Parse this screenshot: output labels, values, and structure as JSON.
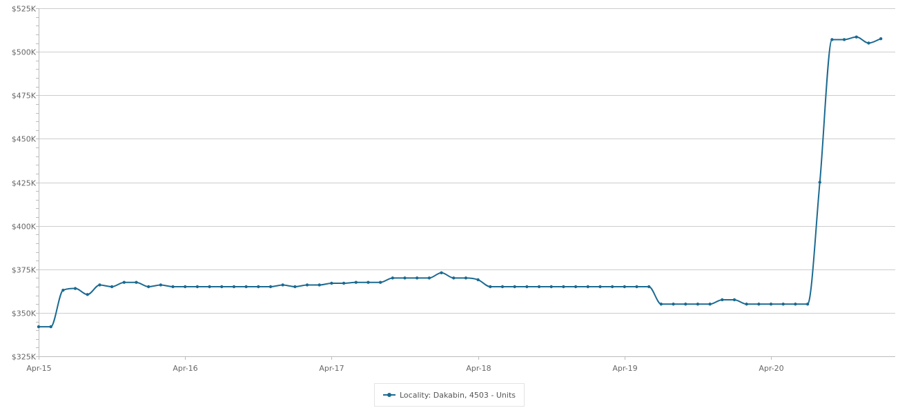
{
  "chart_data": {
    "type": "line",
    "title": "",
    "xlabel": "",
    "ylabel": "",
    "ylim": [
      325000,
      525000
    ],
    "xlim": [
      "2015-04",
      "2020-10"
    ],
    "grid": true,
    "legend_position": "bottom-center",
    "line_color": "#1b6a91",
    "y_ticks": [
      {
        "value": 325000,
        "label": "$325K"
      },
      {
        "value": 350000,
        "label": "$350K"
      },
      {
        "value": 375000,
        "label": "$375K"
      },
      {
        "value": 400000,
        "label": "$400K"
      },
      {
        "value": 425000,
        "label": "$425K"
      },
      {
        "value": 450000,
        "label": "$450K"
      },
      {
        "value": 475000,
        "label": "$475K"
      },
      {
        "value": 500000,
        "label": "$500K"
      },
      {
        "value": 525000,
        "label": "$525K"
      }
    ],
    "x_ticks": [
      {
        "value": "2015-04",
        "label": "Apr-15"
      },
      {
        "value": "2016-04",
        "label": "Apr-16"
      },
      {
        "value": "2017-04",
        "label": "Apr-17"
      },
      {
        "value": "2018-04",
        "label": "Apr-18"
      },
      {
        "value": "2019-04",
        "label": "Apr-19"
      },
      {
        "value": "2020-04",
        "label": "Apr-20"
      }
    ],
    "series": [
      {
        "name": "Locality: Dakabin, 4503 - Units",
        "points": [
          [
            "2015-04",
            342000
          ],
          [
            "2015-05",
            342000
          ],
          [
            "2015-06",
            363000
          ],
          [
            "2015-07",
            364000
          ],
          [
            "2015-08",
            360500
          ],
          [
            "2015-09",
            366000
          ],
          [
            "2015-10",
            365000
          ],
          [
            "2015-11",
            367500
          ],
          [
            "2015-12",
            367500
          ],
          [
            "2016-01",
            365000
          ],
          [
            "2016-02",
            366000
          ],
          [
            "2016-03",
            365000
          ],
          [
            "2016-04",
            365000
          ],
          [
            "2016-05",
            365000
          ],
          [
            "2016-06",
            365000
          ],
          [
            "2016-07",
            365000
          ],
          [
            "2016-08",
            365000
          ],
          [
            "2016-09",
            365000
          ],
          [
            "2016-10",
            365000
          ],
          [
            "2016-11",
            365000
          ],
          [
            "2016-12",
            366000
          ],
          [
            "2017-01",
            365000
          ],
          [
            "2017-02",
            366000
          ],
          [
            "2017-03",
            366000
          ],
          [
            "2017-04",
            367000
          ],
          [
            "2017-05",
            367000
          ],
          [
            "2017-06",
            367500
          ],
          [
            "2017-07",
            367500
          ],
          [
            "2017-08",
            367500
          ],
          [
            "2017-09",
            370000
          ],
          [
            "2017-10",
            370000
          ],
          [
            "2017-11",
            370000
          ],
          [
            "2017-12",
            370000
          ],
          [
            "2018-01",
            373000
          ],
          [
            "2018-02",
            370000
          ],
          [
            "2018-03",
            370000
          ],
          [
            "2018-04",
            369000
          ],
          [
            "2018-05",
            365000
          ],
          [
            "2018-06",
            365000
          ],
          [
            "2018-07",
            365000
          ],
          [
            "2018-08",
            365000
          ],
          [
            "2018-09",
            365000
          ],
          [
            "2018-10",
            365000
          ],
          [
            "2018-11",
            365000
          ],
          [
            "2018-12",
            365000
          ],
          [
            "2019-01",
            365000
          ],
          [
            "2019-02",
            365000
          ],
          [
            "2019-03",
            365000
          ],
          [
            "2019-04",
            365000
          ],
          [
            "2019-05",
            365000
          ],
          [
            "2019-06",
            365000
          ],
          [
            "2019-07",
            355000
          ],
          [
            "2019-08",
            355000
          ],
          [
            "2019-09",
            355000
          ],
          [
            "2019-10",
            355000
          ],
          [
            "2019-11",
            355000
          ],
          [
            "2019-12",
            357500
          ],
          [
            "2020-01",
            357500
          ],
          [
            "2020-02",
            355000
          ],
          [
            "2020-03",
            355000
          ],
          [
            "2020-04",
            355000
          ],
          [
            "2020-05",
            355000
          ],
          [
            "2020-06",
            355000
          ],
          [
            "2020-07",
            355000
          ],
          [
            "2020-08",
            425000
          ],
          [
            "2020-09",
            507000
          ],
          [
            "2020-10",
            507000
          ],
          [
            "2020-11",
            508500
          ],
          [
            "2020-12",
            505000
          ],
          [
            "2021-01",
            507500
          ]
        ]
      }
    ]
  }
}
